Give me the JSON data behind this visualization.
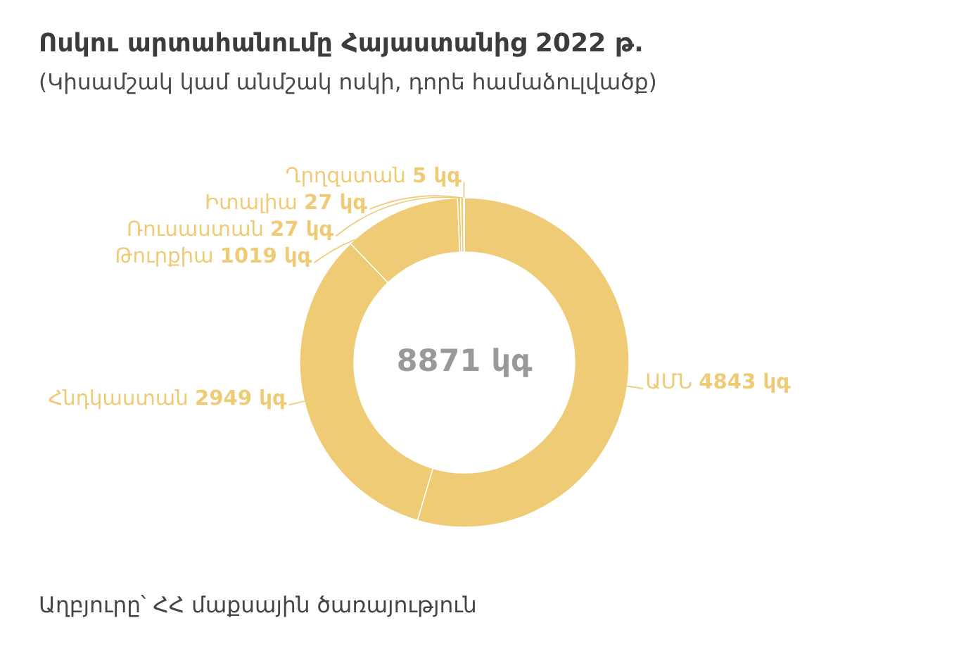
{
  "chart_data": {
    "type": "donut",
    "title": "Ոսկու արտահանումը Հայաստանից 2022 թ.",
    "subtitle": "(Կիսամշակ կամ անմշակ ոսկի, դորե համաձուլվածք)",
    "categories": [
      "ԱՄՆ",
      "Հնդկաստան",
      "Թուրքիա",
      "Ռուսաստան",
      "Իտալիա",
      "Ղրղզստան"
    ],
    "values": [
      4843,
      2949,
      1019,
      27,
      27,
      5
    ],
    "colors": [
      "#eecb74",
      "#eecb74",
      "#eecb74",
      "#eecb74",
      "#eecb74",
      "#eecb74"
    ],
    "value_labels": [
      "4843 կգ",
      "2949 կգ",
      "1019 կգ",
      "27 կգ",
      "27 կգ",
      "5 կգ"
    ],
    "annotations": [
      "8871 կգ",
      "Աղբյուրը՝ ՀՀ մաքսային ծառայություն"
    ]
  }
}
